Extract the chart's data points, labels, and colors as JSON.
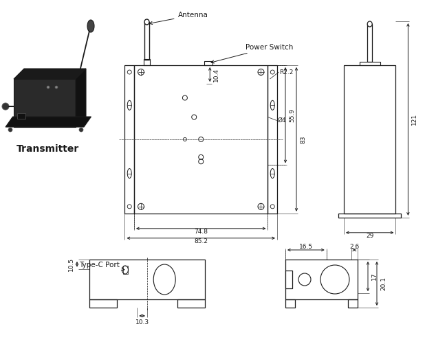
{
  "bg_color": "#ffffff",
  "lc": "#1a1a1a",
  "transmitter_label": "Transmitter",
  "labels": {
    "antenna": "Antenna",
    "power_switch": "Power Switch",
    "type_c": "Type-C Port"
  },
  "dims_front": {
    "width_inner": "74.8",
    "width_outer": "85.2",
    "height_total": "83",
    "height_inner": "55.9",
    "hole_dim": "10.4",
    "radius": "R2.2",
    "hole_dia": "Ø4"
  },
  "dims_side": {
    "height": "121",
    "width": "29"
  },
  "dims_bottom": {
    "port_height": "10.5",
    "port_width": "10.3",
    "side_w1": "16.5",
    "side_w2": "2.6",
    "h1": "17",
    "h2": "20.1"
  }
}
